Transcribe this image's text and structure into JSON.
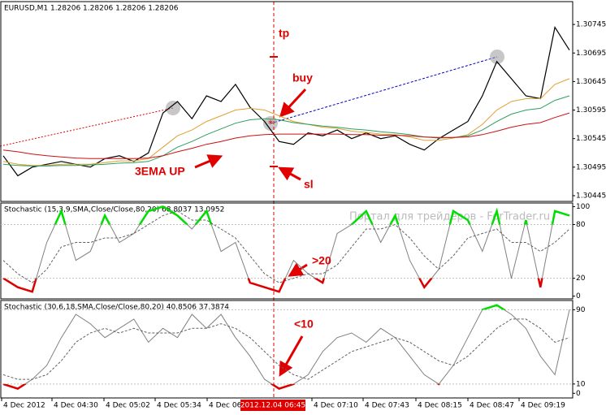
{
  "chart_data": [
    {
      "type": "line",
      "title": "EURUSD,M1  1.28206 1.28206 1.28206 1.28206",
      "ylim": [
        1.30435,
        1.30785
      ],
      "yticks": [
        1.30745,
        1.30695,
        1.30645,
        1.30595,
        1.30545,
        1.30495,
        1.30445
      ],
      "annotations": [
        "tp",
        "buy",
        "3EMA UP",
        "sl"
      ],
      "series": [
        {
          "color": "#000000",
          "values": [
            1.30515,
            1.3048,
            1.30495,
            1.305,
            1.30505,
            1.305,
            1.30495,
            1.3051,
            1.30515,
            1.30505,
            1.3052,
            1.3059,
            1.3061,
            1.3058,
            1.3062,
            1.3061,
            1.3064,
            1.306,
            1.30575,
            1.3054,
            1.30535,
            1.30555,
            1.3055,
            1.3056,
            1.30545,
            1.30555,
            1.30545,
            1.3055,
            1.30535,
            1.30525,
            1.30545,
            1.3056,
            1.30575,
            1.3062,
            1.3068,
            1.3065,
            1.3062,
            1.30615,
            1.3074,
            1.307
          ]
        },
        {
          "color": "#e0a030",
          "values": [
            1.30505,
            1.305,
            1.30498,
            1.30498,
            1.305,
            1.305,
            1.305,
            1.30503,
            1.30506,
            1.30506,
            1.3051,
            1.3053,
            1.3055,
            1.3056,
            1.30575,
            1.30585,
            1.30595,
            1.30598,
            1.30595,
            1.30585,
            1.30575,
            1.3057,
            1.30565,
            1.30563,
            1.30558,
            1.30556,
            1.30553,
            1.30552,
            1.30548,
            1.30542,
            1.30542,
            1.30546,
            1.30552,
            1.3057,
            1.30595,
            1.3061,
            1.30615,
            1.30615,
            1.3064,
            1.3065
          ]
        },
        {
          "color": "#2e9e5e",
          "values": [
            1.305,
            1.30498,
            1.30497,
            1.30497,
            1.30498,
            1.30498,
            1.30499,
            1.305,
            1.30502,
            1.30503,
            1.30505,
            1.30515,
            1.3053,
            1.3054,
            1.30552,
            1.30562,
            1.30572,
            1.30578,
            1.3058,
            1.30578,
            1.30573,
            1.3057,
            1.30567,
            1.30565,
            1.30562,
            1.3056,
            1.30557,
            1.30555,
            1.30552,
            1.30548,
            1.30546,
            1.30547,
            1.3055,
            1.3056,
            1.30575,
            1.30588,
            1.30595,
            1.30598,
            1.30612,
            1.3062
          ]
        },
        {
          "color": "#cc1010",
          "values": [
            1.30525,
            1.30522,
            1.30518,
            1.30515,
            1.30513,
            1.30511,
            1.3051,
            1.3051,
            1.3051,
            1.3051,
            1.30511,
            1.30515,
            1.30522,
            1.30528,
            1.30535,
            1.3054,
            1.30546,
            1.3055,
            1.30552,
            1.30553,
            1.30553,
            1.30553,
            1.30553,
            1.30553,
            1.30552,
            1.30552,
            1.30551,
            1.30551,
            1.3055,
            1.30548,
            1.30547,
            1.30547,
            1.30548,
            1.30552,
            1.30558,
            1.30565,
            1.3057,
            1.30573,
            1.30582,
            1.3059
          ]
        }
      ]
    },
    {
      "type": "line",
      "title": "Stochastic (15,3,9,SMA,Close/Close,80,20) 68.8037 13.0952",
      "ylim": [
        -3,
        104
      ],
      "yticks": [
        100,
        80,
        20,
        0
      ],
      "levels": [
        80,
        20
      ],
      "annotations": [
        ">20"
      ],
      "series": [
        {
          "color": "#808080",
          "high_color": "#00dd00",
          "low_color": "#dd0000",
          "values": [
            20,
            10,
            5,
            60,
            95,
            40,
            50,
            90,
            60,
            70,
            95,
            100,
            90,
            75,
            95,
            50,
            60,
            15,
            10,
            5,
            40,
            25,
            15,
            70,
            80,
            95,
            60,
            90,
            40,
            10,
            30,
            95,
            85,
            50,
            95,
            20,
            85,
            10,
            95,
            90
          ]
        },
        {
          "color": "#606060",
          "style": "dashed",
          "values": [
            40,
            25,
            15,
            30,
            55,
            60,
            60,
            65,
            65,
            70,
            80,
            90,
            95,
            85,
            85,
            75,
            65,
            45,
            25,
            15,
            20,
            25,
            25,
            35,
            55,
            75,
            75,
            80,
            65,
            45,
            30,
            45,
            65,
            70,
            75,
            60,
            60,
            50,
            60,
            75
          ]
        }
      ]
    },
    {
      "type": "line",
      "title": "Stochastic (30,6,18,SMA,Close/Close,80,20) 40.8506 37.3874",
      "ylim": [
        -5,
        100
      ],
      "yticks": [
        90,
        10,
        0
      ],
      "levels": [
        90,
        10
      ],
      "annotations": [
        "<10"
      ],
      "series": [
        {
          "color": "#808080",
          "high_color": "#00dd00",
          "low_color": "#dd0000",
          "values": [
            10,
            5,
            15,
            30,
            60,
            85,
            75,
            60,
            70,
            80,
            55,
            70,
            60,
            85,
            70,
            85,
            60,
            40,
            15,
            5,
            10,
            20,
            45,
            60,
            65,
            55,
            70,
            60,
            40,
            20,
            10,
            30,
            60,
            90,
            95,
            85,
            70,
            40,
            20,
            90
          ]
        },
        {
          "color": "#606060",
          "style": "dashed",
          "values": [
            20,
            15,
            15,
            20,
            35,
            55,
            65,
            70,
            65,
            70,
            65,
            65,
            65,
            70,
            70,
            75,
            70,
            60,
            45,
            30,
            20,
            15,
            25,
            35,
            45,
            50,
            55,
            60,
            55,
            45,
            35,
            30,
            40,
            55,
            70,
            80,
            80,
            70,
            55,
            60
          ]
        }
      ]
    }
  ],
  "time_axis": {
    "labels": [
      "4 Dec 2012",
      "4 Dec 04:30",
      "4 Dec 05:02",
      "4 Dec 05:34",
      "4 Dec 06",
      "4 Dec 07:10",
      "4 Dec 07:43",
      "4 Dec 08:15",
      "4 Dec 08:47",
      "4 Dec 09:19"
    ],
    "cursor_label": "2012.12.04 06:45"
  },
  "watermark": "Портал для трейдеров - ForTrader.ru"
}
